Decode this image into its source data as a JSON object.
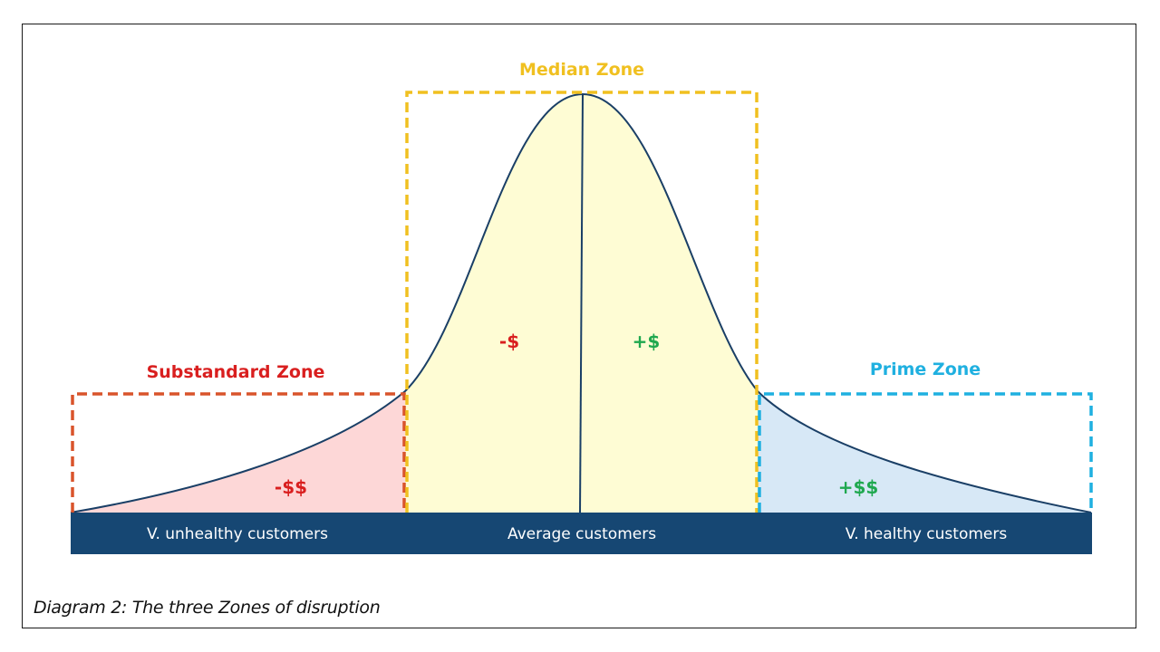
{
  "zones": {
    "substandard": {
      "title": "Substandard Zone",
      "money": "-$$",
      "color": "#d9542b",
      "title_color": "#d91f1f",
      "fill": "#fdd7d7"
    },
    "median": {
      "title": "Median Zone",
      "money_left": "-$",
      "money_right": "+$",
      "color": "#f0c020",
      "fill": "#fefcd4"
    },
    "prime": {
      "title": "Prime Zone",
      "money": "+$$",
      "color": "#1fb0e0",
      "fill": "#d7e8f6"
    }
  },
  "money_colors": {
    "negative": "#d91f1f",
    "positive": "#1fa84f"
  },
  "bar": {
    "color": "#164773",
    "labels": [
      "V. unhealthy customers",
      "Average customers",
      "V. healthy customers"
    ]
  },
  "curve_color": "#1a3f66",
  "caption": "Diagram 2: The three Zones of disruption"
}
